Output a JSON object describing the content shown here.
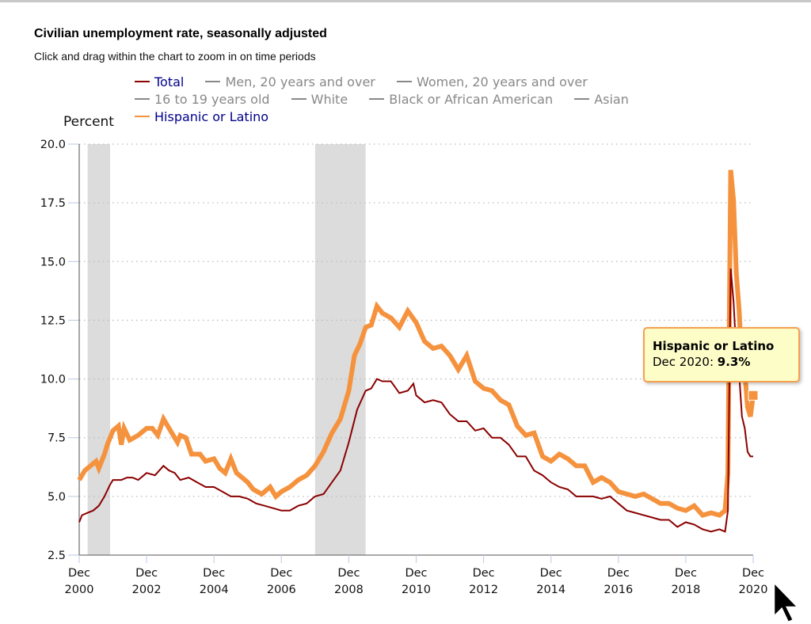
{
  "header": {
    "title": "Civilian unemployment rate, seasonally adjusted",
    "subtitle": "Click and drag within the chart to zoom in on time periods"
  },
  "colors": {
    "total": "#8b0000",
    "hispanic": "#f5923e",
    "inactive_legend": "#888888",
    "active_legend_text": "#00008b",
    "recession": "#dcdcdc",
    "tooltip_bg": "#fdfdc8",
    "tooltip_border": "#f5a04e"
  },
  "legend": {
    "rows": [
      [
        {
          "label": "Total",
          "active": true,
          "color": "#8b0000"
        },
        {
          "label": "Men, 20 years and over",
          "active": false,
          "color": "#888888"
        },
        {
          "label": "Women, 20 years and over",
          "active": false,
          "color": "#888888"
        }
      ],
      [
        {
          "label": "16 to 19 years old",
          "active": false,
          "color": "#888888"
        },
        {
          "label": "White",
          "active": false,
          "color": "#888888"
        },
        {
          "label": "Black or African American",
          "active": false,
          "color": "#888888"
        },
        {
          "label": "Asian",
          "active": false,
          "color": "#888888"
        }
      ],
      [
        {
          "label": "Hispanic or Latino",
          "active": true,
          "color": "#f5923e"
        }
      ]
    ]
  },
  "tooltip": {
    "series": "Hispanic or Latino",
    "date_label": "Dec 2020: ",
    "value_label": "9.3%"
  },
  "chart_data": {
    "type": "line",
    "title": "Civilian unemployment rate, seasonally adjusted",
    "xlabel": "",
    "ylabel": "Percent",
    "ylim": [
      2.5,
      20.0
    ],
    "yticks": [
      "2.5",
      "5.0",
      "7.5",
      "10.0",
      "12.5",
      "15.0",
      "17.5",
      "20.0"
    ],
    "ytick_values": [
      2.5,
      5.0,
      7.5,
      10.0,
      12.5,
      15.0,
      17.5,
      20.0
    ],
    "xlim": [
      "2000-12",
      "2020-12"
    ],
    "xticks": [
      {
        "line1": "Dec",
        "line2": "2000",
        "date": "2000-12"
      },
      {
        "line1": "Dec",
        "line2": "2002",
        "date": "2002-12"
      },
      {
        "line1": "Dec",
        "line2": "2004",
        "date": "2004-12"
      },
      {
        "line1": "Dec",
        "line2": "2006",
        "date": "2006-12"
      },
      {
        "line1": "Dec",
        "line2": "2008",
        "date": "2008-12"
      },
      {
        "line1": "Dec",
        "line2": "2010",
        "date": "2010-12"
      },
      {
        "line1": "Dec",
        "line2": "2012",
        "date": "2012-12"
      },
      {
        "line1": "Dec",
        "line2": "2014",
        "date": "2014-12"
      },
      {
        "line1": "Dec",
        "line2": "2016",
        "date": "2016-12"
      },
      {
        "line1": "Dec",
        "line2": "2018",
        "date": "2018-12"
      },
      {
        "line1": "Dec",
        "line2": "2020",
        "date": "2020-12"
      }
    ],
    "grid": "horizontal-dotted",
    "recessions": [
      {
        "start": "2001-03",
        "end": "2001-11"
      },
      {
        "start": "2007-12",
        "end": "2009-06"
      }
    ],
    "series": [
      {
        "name": "Total",
        "color": "#8b0000",
        "points": [
          [
            "2000-12",
            3.9
          ],
          [
            "2001-01",
            4.2
          ],
          [
            "2001-03",
            4.3
          ],
          [
            "2001-05",
            4.4
          ],
          [
            "2001-07",
            4.6
          ],
          [
            "2001-09",
            5.0
          ],
          [
            "2001-11",
            5.5
          ],
          [
            "2001-12",
            5.7
          ],
          [
            "2002-03",
            5.7
          ],
          [
            "2002-05",
            5.8
          ],
          [
            "2002-07",
            5.8
          ],
          [
            "2002-09",
            5.7
          ],
          [
            "2002-11",
            5.9
          ],
          [
            "2002-12",
            6.0
          ],
          [
            "2003-03",
            5.9
          ],
          [
            "2003-06",
            6.3
          ],
          [
            "2003-08",
            6.1
          ],
          [
            "2003-10",
            6.0
          ],
          [
            "2003-12",
            5.7
          ],
          [
            "2004-03",
            5.8
          ],
          [
            "2004-06",
            5.6
          ],
          [
            "2004-09",
            5.4
          ],
          [
            "2004-12",
            5.4
          ],
          [
            "2005-03",
            5.2
          ],
          [
            "2005-06",
            5.0
          ],
          [
            "2005-09",
            5.0
          ],
          [
            "2005-12",
            4.9
          ],
          [
            "2006-03",
            4.7
          ],
          [
            "2006-06",
            4.6
          ],
          [
            "2006-09",
            4.5
          ],
          [
            "2006-12",
            4.4
          ],
          [
            "2007-03",
            4.4
          ],
          [
            "2007-06",
            4.6
          ],
          [
            "2007-09",
            4.7
          ],
          [
            "2007-12",
            5.0
          ],
          [
            "2008-03",
            5.1
          ],
          [
            "2008-06",
            5.6
          ],
          [
            "2008-09",
            6.1
          ],
          [
            "2008-12",
            7.3
          ],
          [
            "2009-03",
            8.7
          ],
          [
            "2009-06",
            9.5
          ],
          [
            "2009-08",
            9.6
          ],
          [
            "2009-10",
            10.0
          ],
          [
            "2009-12",
            9.9
          ],
          [
            "2010-03",
            9.9
          ],
          [
            "2010-06",
            9.4
          ],
          [
            "2010-09",
            9.5
          ],
          [
            "2010-11",
            9.8
          ],
          [
            "2010-12",
            9.3
          ],
          [
            "2011-03",
            9.0
          ],
          [
            "2011-06",
            9.1
          ],
          [
            "2011-09",
            9.0
          ],
          [
            "2011-12",
            8.5
          ],
          [
            "2012-03",
            8.2
          ],
          [
            "2012-06",
            8.2
          ],
          [
            "2012-09",
            7.8
          ],
          [
            "2012-12",
            7.9
          ],
          [
            "2013-03",
            7.5
          ],
          [
            "2013-06",
            7.5
          ],
          [
            "2013-09",
            7.2
          ],
          [
            "2013-12",
            6.7
          ],
          [
            "2014-03",
            6.7
          ],
          [
            "2014-06",
            6.1
          ],
          [
            "2014-09",
            5.9
          ],
          [
            "2014-12",
            5.6
          ],
          [
            "2015-03",
            5.4
          ],
          [
            "2015-06",
            5.3
          ],
          [
            "2015-09",
            5.0
          ],
          [
            "2015-12",
            5.0
          ],
          [
            "2016-03",
            5.0
          ],
          [
            "2016-06",
            4.9
          ],
          [
            "2016-09",
            5.0
          ],
          [
            "2016-12",
            4.7
          ],
          [
            "2017-03",
            4.4
          ],
          [
            "2017-06",
            4.3
          ],
          [
            "2017-09",
            4.2
          ],
          [
            "2017-12",
            4.1
          ],
          [
            "2018-03",
            4.0
          ],
          [
            "2018-06",
            4.0
          ],
          [
            "2018-09",
            3.7
          ],
          [
            "2018-12",
            3.9
          ],
          [
            "2019-03",
            3.8
          ],
          [
            "2019-06",
            3.6
          ],
          [
            "2019-09",
            3.5
          ],
          [
            "2019-12",
            3.6
          ],
          [
            "2020-02",
            3.5
          ],
          [
            "2020-03",
            4.4
          ],
          [
            "2020-04",
            14.7
          ],
          [
            "2020-05",
            13.3
          ],
          [
            "2020-06",
            11.1
          ],
          [
            "2020-07",
            10.2
          ],
          [
            "2020-08",
            8.4
          ],
          [
            "2020-09",
            7.9
          ],
          [
            "2020-10",
            6.9
          ],
          [
            "2020-11",
            6.7
          ],
          [
            "2020-12",
            6.7
          ]
        ]
      },
      {
        "name": "Hispanic or Latino",
        "color": "#f5923e",
        "points": [
          [
            "2000-12",
            5.7
          ],
          [
            "2001-02",
            6.1
          ],
          [
            "2001-04",
            6.3
          ],
          [
            "2001-06",
            6.5
          ],
          [
            "2001-07",
            6.2
          ],
          [
            "2001-09",
            6.8
          ],
          [
            "2001-10",
            7.2
          ],
          [
            "2001-12",
            7.8
          ],
          [
            "2002-02",
            8.0
          ],
          [
            "2002-03",
            7.2
          ],
          [
            "2002-04",
            7.9
          ],
          [
            "2002-06",
            7.4
          ],
          [
            "2002-09",
            7.6
          ],
          [
            "2002-12",
            7.9
          ],
          [
            "2003-02",
            7.9
          ],
          [
            "2003-04",
            7.6
          ],
          [
            "2003-06",
            8.3
          ],
          [
            "2003-09",
            7.7
          ],
          [
            "2003-11",
            7.3
          ],
          [
            "2003-12",
            7.6
          ],
          [
            "2004-02",
            7.5
          ],
          [
            "2004-04",
            6.8
          ],
          [
            "2004-07",
            6.8
          ],
          [
            "2004-09",
            6.5
          ],
          [
            "2004-12",
            6.6
          ],
          [
            "2005-02",
            6.2
          ],
          [
            "2005-04",
            6.0
          ],
          [
            "2005-06",
            6.6
          ],
          [
            "2005-08",
            6.0
          ],
          [
            "2005-10",
            5.8
          ],
          [
            "2005-12",
            5.6
          ],
          [
            "2006-02",
            5.3
          ],
          [
            "2006-05",
            5.1
          ],
          [
            "2006-08",
            5.4
          ],
          [
            "2006-10",
            5.0
          ],
          [
            "2006-12",
            5.2
          ],
          [
            "2007-03",
            5.4
          ],
          [
            "2007-06",
            5.7
          ],
          [
            "2007-09",
            5.9
          ],
          [
            "2007-12",
            6.3
          ],
          [
            "2008-03",
            6.9
          ],
          [
            "2008-06",
            7.7
          ],
          [
            "2008-09",
            8.3
          ],
          [
            "2008-12",
            9.5
          ],
          [
            "2009-02",
            11.0
          ],
          [
            "2009-04",
            11.5
          ],
          [
            "2009-06",
            12.2
          ],
          [
            "2009-08",
            12.3
          ],
          [
            "2009-10",
            13.1
          ],
          [
            "2009-12",
            12.8
          ],
          [
            "2010-03",
            12.6
          ],
          [
            "2010-06",
            12.2
          ],
          [
            "2010-09",
            12.9
          ],
          [
            "2010-12",
            12.4
          ],
          [
            "2011-03",
            11.6
          ],
          [
            "2011-06",
            11.3
          ],
          [
            "2011-09",
            11.4
          ],
          [
            "2011-12",
            11.0
          ],
          [
            "2012-03",
            10.4
          ],
          [
            "2012-06",
            11.0
          ],
          [
            "2012-09",
            9.9
          ],
          [
            "2012-12",
            9.6
          ],
          [
            "2013-03",
            9.5
          ],
          [
            "2013-06",
            9.1
          ],
          [
            "2013-09",
            8.9
          ],
          [
            "2013-12",
            8.0
          ],
          [
            "2014-03",
            7.6
          ],
          [
            "2014-06",
            7.7
          ],
          [
            "2014-09",
            6.7
          ],
          [
            "2014-12",
            6.5
          ],
          [
            "2015-03",
            6.8
          ],
          [
            "2015-06",
            6.6
          ],
          [
            "2015-09",
            6.3
          ],
          [
            "2015-12",
            6.3
          ],
          [
            "2016-03",
            5.6
          ],
          [
            "2016-06",
            5.8
          ],
          [
            "2016-09",
            5.6
          ],
          [
            "2016-12",
            5.2
          ],
          [
            "2017-03",
            5.1
          ],
          [
            "2017-06",
            5.0
          ],
          [
            "2017-09",
            5.1
          ],
          [
            "2017-12",
            4.9
          ],
          [
            "2018-03",
            4.7
          ],
          [
            "2018-06",
            4.7
          ],
          [
            "2018-09",
            4.5
          ],
          [
            "2018-12",
            4.4
          ],
          [
            "2019-03",
            4.6
          ],
          [
            "2019-06",
            4.2
          ],
          [
            "2019-09",
            4.3
          ],
          [
            "2019-12",
            4.2
          ],
          [
            "2020-02",
            4.4
          ],
          [
            "2020-03",
            6.0
          ],
          [
            "2020-04",
            18.9
          ],
          [
            "2020-05",
            17.6
          ],
          [
            "2020-06",
            14.5
          ],
          [
            "2020-07",
            12.9
          ],
          [
            "2020-08",
            10.5
          ],
          [
            "2020-09",
            10.3
          ],
          [
            "2020-10",
            8.8
          ],
          [
            "2020-11",
            8.4
          ],
          [
            "2020-12",
            9.3
          ]
        ]
      }
    ],
    "highlight": {
      "series": "Hispanic or Latino",
      "date": "2020-12",
      "value": 9.3
    }
  }
}
